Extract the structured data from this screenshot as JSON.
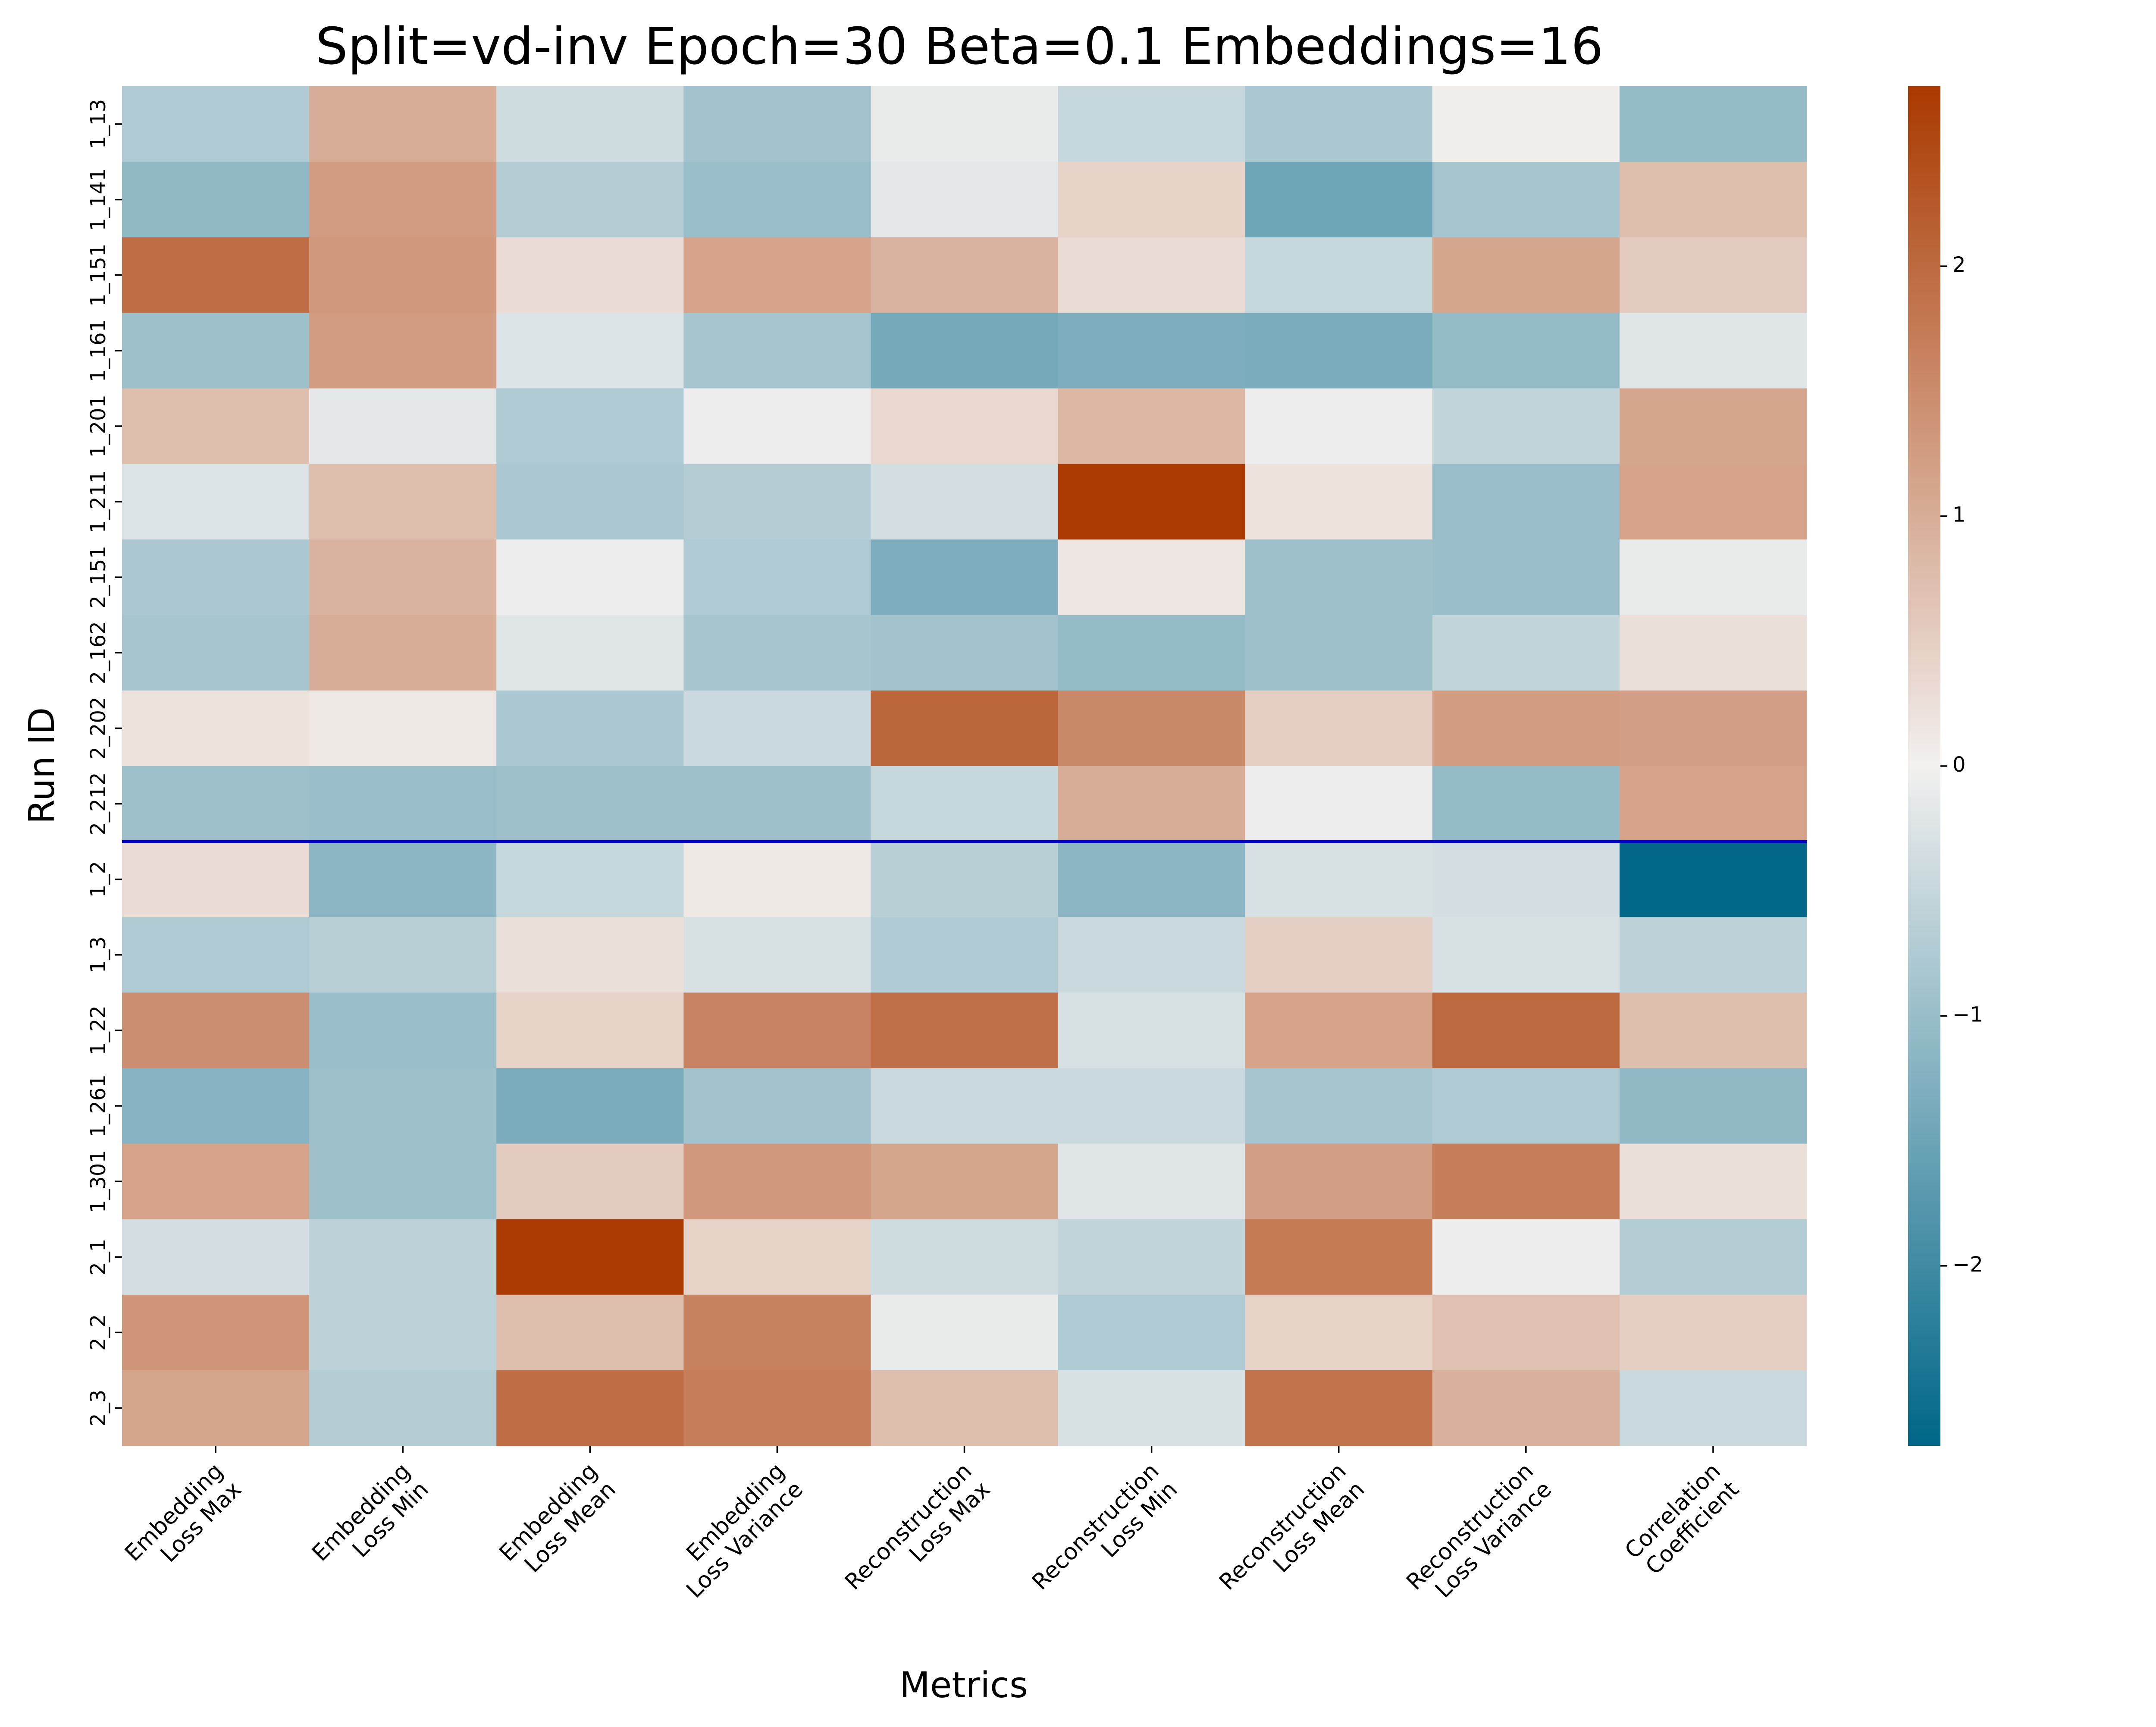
{
  "chart_data": {
    "type": "heatmap",
    "title": "Split=vd-inv Epoch=30 Beta=0.1 Embeddings=16",
    "xlabel": "Metrics",
    "ylabel": "Run ID",
    "columns": [
      [
        "Embedding",
        "Loss Max"
      ],
      [
        "Embedding",
        "Loss Min"
      ],
      [
        "Embedding",
        "Loss Mean"
      ],
      [
        "Embedding",
        "Loss Variance"
      ],
      [
        "Reconstruction",
        "Loss Max"
      ],
      [
        "Reconstruction",
        "Loss Min"
      ],
      [
        "Reconstruction",
        "Loss Mean"
      ],
      [
        "Reconstruction",
        "Loss Variance"
      ],
      [
        "Correlation",
        "Coefficient"
      ]
    ],
    "rows": [
      "1_13",
      "1_14",
      "1_15",
      "1_16",
      "1_20",
      "1_21",
      "2_15",
      "2_16",
      "2_20",
      "2_21",
      "1_2",
      "1_3",
      "1_22",
      "1_26",
      "1_30",
      "2_1",
      "2_2",
      "2_3"
    ],
    "row_tick_labels": [
      "1_13",
      "1_141",
      "1_151",
      "1_161",
      "1_201",
      "1_211",
      "2_151",
      "2_162",
      "2_202",
      "2_212",
      "1_2",
      "1_3",
      "1_22",
      "1_261",
      "1_301",
      "2_1",
      "2_2",
      "2_3"
    ],
    "values": [
      [
        -0.75,
        1.0,
        -0.4,
        -0.9,
        -0.1,
        -0.5,
        -0.8,
        0.05,
        -1.05
      ],
      [
        -1.1,
        1.25,
        -0.7,
        -1.0,
        -0.15,
        0.45,
        -1.5,
        -0.85,
        0.75
      ],
      [
        1.95,
        1.3,
        0.3,
        1.15,
        0.9,
        0.3,
        -0.5,
        1.1,
        0.55
      ],
      [
        -0.95,
        1.25,
        -0.25,
        -0.85,
        -1.4,
        -1.3,
        -1.35,
        -1.05,
        -0.2
      ],
      [
        0.75,
        -0.15,
        -0.75,
        -0.05,
        0.35,
        0.85,
        -0.05,
        -0.55,
        1.1
      ],
      [
        -0.25,
        0.75,
        -0.8,
        -0.7,
        -0.35,
        2.7,
        0.2,
        -1.0,
        1.15
      ],
      [
        -0.8,
        0.9,
        -0.05,
        -0.75,
        -1.3,
        0.15,
        -0.95,
        -1.0,
        -0.1
      ],
      [
        -0.85,
        1.0,
        -0.2,
        -0.85,
        -0.9,
        -1.05,
        -0.95,
        -0.55,
        0.25
      ],
      [
        0.2,
        0.1,
        -0.8,
        -0.45,
        2.05,
        1.55,
        0.5,
        1.25,
        1.2
      ],
      [
        -0.95,
        -1.0,
        -0.95,
        -0.95,
        -0.5,
        1.0,
        -0.05,
        -1.05,
        1.15
      ],
      [
        0.3,
        -1.15,
        -0.5,
        0.1,
        -0.65,
        -1.15,
        -0.3,
        -0.35,
        -2.7
      ],
      [
        -0.75,
        -0.65,
        0.25,
        -0.3,
        -0.75,
        -0.45,
        0.5,
        -0.3,
        -0.6
      ],
      [
        1.45,
        -1.0,
        0.45,
        1.6,
        1.9,
        -0.3,
        1.15,
        2.0,
        0.75
      ],
      [
        -1.2,
        -0.95,
        -1.35,
        -0.9,
        -0.45,
        -0.45,
        -0.85,
        -0.75,
        -1.1
      ],
      [
        1.15,
        -0.95,
        0.55,
        1.3,
        1.1,
        -0.2,
        1.2,
        1.7,
        0.25
      ],
      [
        -0.35,
        -0.6,
        2.7,
        0.45,
        -0.4,
        -0.55,
        1.75,
        -0.05,
        -0.7
      ],
      [
        1.35,
        -0.6,
        0.75,
        1.65,
        -0.1,
        -0.75,
        0.45,
        0.7,
        0.5
      ],
      [
        1.1,
        -0.7,
        1.95,
        1.7,
        0.75,
        -0.3,
        1.85,
        0.95,
        -0.45
      ]
    ],
    "vmin": -2.72,
    "vmax": 2.72,
    "colorbar_ticks": [
      -2,
      -1,
      0,
      1,
      2
    ],
    "colorbar_tick_labels": [
      "−2",
      "−1",
      "0",
      "1",
      "2"
    ],
    "colors": {
      "low": "#006688",
      "mid": "#f2f0ef",
      "high": "#aa3900"
    },
    "separator": {
      "after_row_index": 9,
      "color": "#0000cc"
    },
    "grid": false
  }
}
